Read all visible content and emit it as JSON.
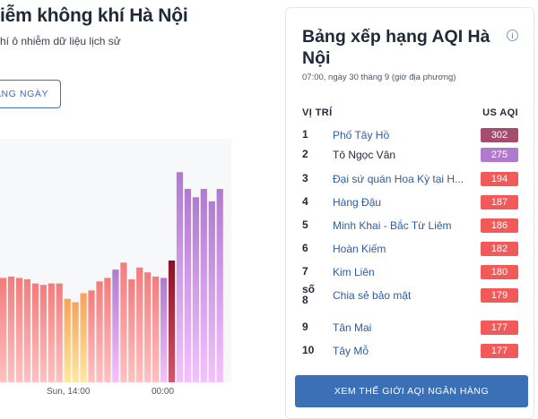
{
  "header": {
    "title": "iễm không khí Hà Nội",
    "subtitle": "hí ô nhiễm dữ liệu lịch sử",
    "ranking_button": "ẢNG NGÀY"
  },
  "chart_data": {
    "type": "bar",
    "values": [
      150,
      152,
      150,
      148,
      142,
      140,
      142,
      142,
      120,
      115,
      128,
      132,
      145,
      150,
      162,
      172,
      148,
      165,
      158,
      152,
      150,
      175,
      302,
      278,
      266,
      278,
      260,
      278
    ],
    "colors": [
      "#f47b7b",
      "#f47b7b",
      "#f47b7b",
      "#f47b7b",
      "#f47b7b",
      "#f47b7b",
      "#f47b7b",
      "#f47b7b",
      "#f5a25a",
      "#f5a25a",
      "#f5a25a",
      "#f47b7b",
      "#f47b7b",
      "#f47b7b",
      "#b07ad0",
      "#f47b7b",
      "#f47b7b",
      "#f47b7b",
      "#f47b7b",
      "#f47b7b",
      "#b07ad0",
      "#8a1126",
      "#b07ad0",
      "#b07ad0",
      "#b07ad0",
      "#b07ad0",
      "#b07ad0",
      "#b07ad0"
    ],
    "x_tick_labels": [
      "Sun, 14:00",
      "00:00"
    ],
    "ylim": [
      0,
      350
    ]
  },
  "panel": {
    "title": "Bảng xếp hạng AQI Hà Nội",
    "time": "07:00, ngày 30 tháng 9 (giờ địa phương)",
    "col_rank": "VỊ TRÍ",
    "col_aqi": "US AQI",
    "rows": [
      {
        "rank": "1",
        "name": "Phố Tây Hồ",
        "aqi": "302",
        "color": "#a64d6e"
      },
      {
        "rank": "2",
        "name": "Tô Ngọc Vân",
        "aqi": "275",
        "color": "#b07ad0"
      },
      {
        "rank": "3",
        "name": "Đại sứ quán Hoa Kỳ tại H...",
        "aqi": "194",
        "color": "#f25a5a"
      },
      {
        "rank": "4",
        "name": "Hàng Đậu",
        "aqi": "187",
        "color": "#f25a5a"
      },
      {
        "rank": "5",
        "name": "Minh Khai - Bắc Từ Liêm",
        "aqi": "186",
        "color": "#f25a5a"
      },
      {
        "rank": "6",
        "name": "Hoàn Kiếm",
        "aqi": "182",
        "color": "#f25a5a"
      },
      {
        "rank": "7",
        "name": "Kim Liên",
        "aqi": "180",
        "color": "#f25a5a"
      },
      {
        "rank": "số 8",
        "name": "Chia sẻ bảo mật",
        "aqi": "179",
        "color": "#f25a5a"
      },
      {
        "rank": "9",
        "name": "Tân Mai",
        "aqi": "177",
        "color": "#f25a5a"
      },
      {
        "rank": "10",
        "name": "Tây Mỗ",
        "aqi": "177",
        "color": "#f25a5a"
      }
    ],
    "world_button": "XEM THẾ GIỚI AQI NGÂN HÀNG"
  }
}
